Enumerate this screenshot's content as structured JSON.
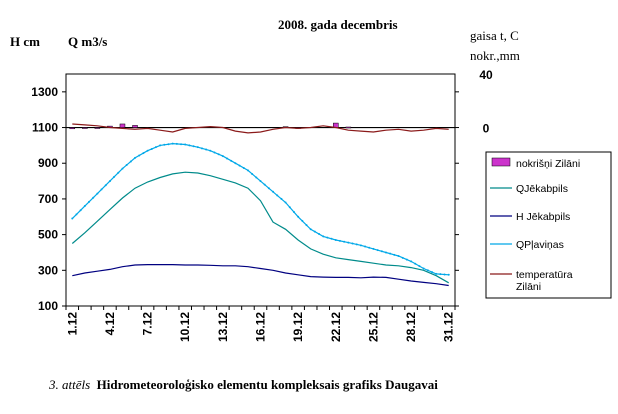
{
  "chart_data": {
    "type": "line",
    "title": "2008. gada decembris",
    "y_left_labels": [
      "H  cm",
      "Q m3/s"
    ],
    "y_right_labels": [
      "gaisa t, C",
      "nokr.,mm"
    ],
    "ylim": [
      100,
      1400
    ],
    "y_ticks": [
      100,
      300,
      500,
      700,
      900,
      1100,
      1300
    ],
    "y2_ticks": [
      "40",
      "0"
    ],
    "x_labels": [
      "1.12",
      "4.12",
      "7.12",
      "10.12",
      "13.12",
      "16.12",
      "19.12",
      "22.12",
      "25.12",
      "28.12",
      "31.12"
    ],
    "x": [
      1,
      2,
      3,
      4,
      5,
      6,
      7,
      8,
      9,
      10,
      11,
      12,
      13,
      14,
      15,
      16,
      17,
      18,
      19,
      20,
      21,
      22,
      23,
      24,
      25,
      26,
      27,
      28,
      29,
      30,
      31
    ],
    "legend_position": "right",
    "series": [
      {
        "name": "nokrišņi Zilāni",
        "kind": "bar",
        "color": "#cc33cc",
        "values": [
          1093,
          1095,
          1097,
          1108,
          1120,
          1112,
          1100,
          1100,
          1100,
          1100,
          1100,
          1100,
          1100,
          1100,
          1100,
          1100,
          1100,
          1105,
          1098,
          1100,
          1100,
          1125,
          1103,
          1100,
          1100,
          1100,
          1100,
          1100,
          1100,
          1100,
          1100
        ]
      },
      {
        "name": "QJēkabpils",
        "kind": "line",
        "color": "#008b8b",
        "values": [
          450,
          510,
          575,
          640,
          705,
          760,
          795,
          820,
          840,
          850,
          845,
          830,
          810,
          790,
          760,
          690,
          570,
          530,
          470,
          420,
          390,
          370,
          360,
          350,
          340,
          330,
          325,
          315,
          300,
          270,
          230
        ]
      },
      {
        "name": "H Jēkabpils",
        "kind": "line",
        "color": "#000080",
        "values": [
          270,
          285,
          295,
          305,
          320,
          330,
          332,
          332,
          332,
          330,
          330,
          328,
          325,
          325,
          320,
          310,
          300,
          285,
          275,
          265,
          262,
          260,
          260,
          258,
          262,
          260,
          250,
          240,
          232,
          225,
          215
        ]
      },
      {
        "name": "QPļaviņas",
        "kind": "line",
        "color": "#00a8e8",
        "marker": "dots",
        "values": [
          590,
          660,
          730,
          800,
          870,
          930,
          970,
          1000,
          1010,
          1005,
          990,
          970,
          940,
          900,
          860,
          800,
          740,
          680,
          600,
          530,
          490,
          470,
          455,
          440,
          420,
          400,
          380,
          350,
          310,
          280,
          275
        ]
      },
      {
        "name": "temperatūra Zilāni",
        "kind": "line",
        "color": "#8b1a1a",
        "values": [
          1120,
          1115,
          1110,
          1100,
          1095,
          1090,
          1095,
          1085,
          1075,
          1095,
          1100,
          1105,
          1100,
          1080,
          1070,
          1075,
          1090,
          1100,
          1095,
          1100,
          1110,
          1100,
          1085,
          1080,
          1075,
          1085,
          1090,
          1080,
          1085,
          1095,
          1090
        ]
      }
    ]
  },
  "caption": {
    "number": "3. attēls",
    "text": "Hidrometeoroloģisko elementu kompleksais grafiks Daugavai"
  }
}
